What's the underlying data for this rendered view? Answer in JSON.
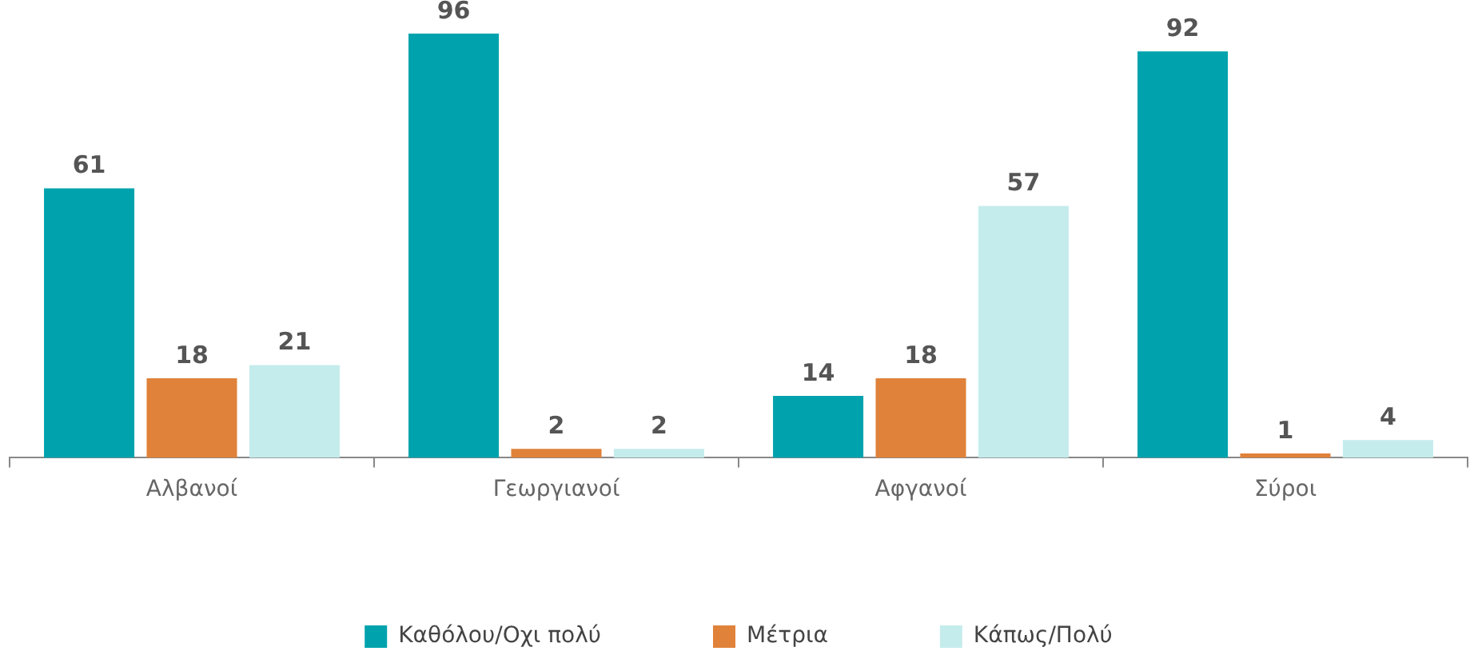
{
  "chart_data": {
    "type": "bar",
    "categories": [
      "Αλβανοί",
      "Γεωργιανοί",
      "Αφγανοί",
      "Σύροι"
    ],
    "series": [
      {
        "name": "Καθόλου/Οχι πολύ",
        "color": "#00a3ad",
        "values": [
          61,
          96,
          14,
          92
        ]
      },
      {
        "name": "Μέτρια",
        "color": "#e0823a",
        "values": [
          18,
          2,
          18,
          1
        ]
      },
      {
        "name": "Κάπως/Πολύ",
        "color": "#c5ecec",
        "values": [
          21,
          2,
          57,
          4
        ]
      }
    ],
    "data_labels": true,
    "grid": false,
    "legend": "bottom",
    "tick_labels": "x"
  }
}
